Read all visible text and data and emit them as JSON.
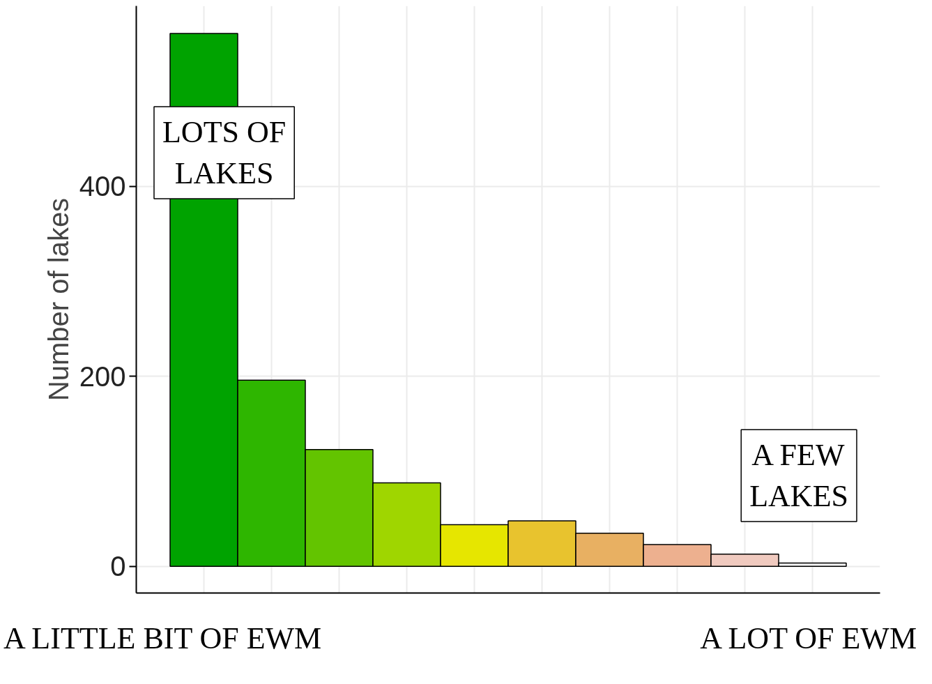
{
  "chart_data": {
    "type": "bar",
    "ylabel": "Number of lakes",
    "categories": [
      null,
      null,
      null,
      null,
      null,
      null,
      null,
      null,
      null,
      null
    ],
    "values": [
      561,
      196,
      123,
      88,
      44,
      48,
      35,
      23,
      13,
      3.5
    ],
    "colors": [
      "#00a300",
      "#2eb600",
      "#63c400",
      "#9fd600",
      "#e6e600",
      "#e8c32e",
      "#e8b062",
      "#edb08f",
      "#f0cabf",
      "#f2f2f2"
    ],
    "ylim": [
      -28,
      590
    ],
    "yticks": [
      0,
      200,
      400
    ],
    "grid": true,
    "tick_labels": "y",
    "annotations": [
      "LOTS OF\nLAKES",
      "A FEW\nLAKES",
      "A LITTLE BIT OF EWM",
      "A LOT OF EWM"
    ]
  }
}
